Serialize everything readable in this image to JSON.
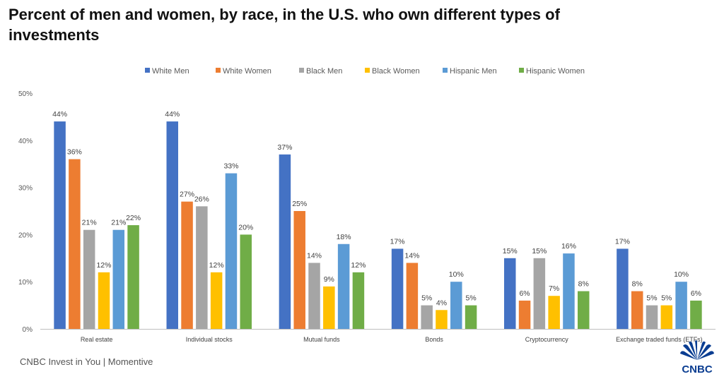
{
  "title": "Percent of men and women, by race, in the U.S. who own different types of investments",
  "source": "CNBC Invest in You | Momentive",
  "logo_text": "CNBC",
  "chart_data": {
    "type": "bar",
    "categories": [
      "Real estate",
      "Individual stocks",
      "Mutual funds",
      "Bonds",
      "Cryptocurrency",
      "Exchange traded funds (ETFs)"
    ],
    "series": [
      {
        "name": "White Men",
        "color": "#4472C4",
        "values": [
          44,
          44,
          37,
          17,
          15,
          17
        ]
      },
      {
        "name": "White Women",
        "color": "#ED7D31",
        "values": [
          36,
          27,
          25,
          14,
          6,
          8
        ]
      },
      {
        "name": "Black Men",
        "color": "#A5A5A5",
        "values": [
          21,
          26,
          14,
          5,
          15,
          5
        ]
      },
      {
        "name": "Black Women",
        "color": "#FFC000",
        "values": [
          12,
          12,
          9,
          4,
          7,
          5
        ]
      },
      {
        "name": "Hispanic Men",
        "color": "#5B9BD5",
        "values": [
          21,
          33,
          18,
          10,
          16,
          10
        ]
      },
      {
        "name": "Hispanic Women",
        "color": "#70AD47",
        "values": [
          22,
          20,
          12,
          5,
          8,
          6
        ]
      }
    ],
    "y_ticks": [
      "0%",
      "10%",
      "20%",
      "30%",
      "40%",
      "50%"
    ],
    "ylim": [
      0,
      50
    ],
    "value_suffix": "%",
    "legend": "top",
    "grid": false
  }
}
